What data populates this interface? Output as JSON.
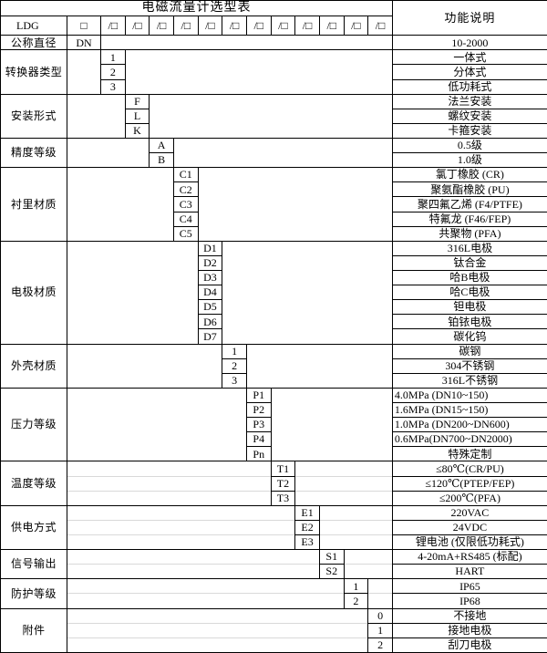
{
  "title": "电磁流量计选型表",
  "function_column_header": "功能说明",
  "model_row": {
    "prefix": "LDG",
    "first_box": "□",
    "slash_box": "/□",
    "slash_box_count": 12
  },
  "colors": {
    "border": "#000000",
    "faint_grid_line": "#d9d9d9",
    "text": "#000000",
    "background": "#ffffff"
  },
  "blocks": [
    {
      "label": "公称直径",
      "code_column": 1,
      "faint_lines": false,
      "rows": [
        {
          "code": "DN",
          "function": "10-2000"
        }
      ]
    },
    {
      "label": "转换器类型",
      "code_column": 2,
      "faint_lines": false,
      "rows": [
        {
          "code": "1",
          "function": "一体式"
        },
        {
          "code": "2",
          "function": "分体式"
        },
        {
          "code": "3",
          "function": "低功耗式"
        }
      ]
    },
    {
      "label": "安装形式",
      "code_column": 3,
      "faint_lines": false,
      "rows": [
        {
          "code": "F",
          "function": "法兰安装"
        },
        {
          "code": "L",
          "function": "螺纹安装"
        },
        {
          "code": "K",
          "function": "卡箍安装"
        }
      ]
    },
    {
      "label": "精度等级",
      "code_column": 4,
      "faint_lines": false,
      "rows": [
        {
          "code": "A",
          "function": "0.5级"
        },
        {
          "code": "B",
          "function": "1.0级"
        }
      ]
    },
    {
      "label": "衬里材质",
      "code_column": 5,
      "faint_lines": false,
      "rows": [
        {
          "code": "C1",
          "function": "氯丁橡胶 (CR)"
        },
        {
          "code": "C2",
          "function": "聚氨酯橡胶 (PU)"
        },
        {
          "code": "C3",
          "function": "聚四氟乙烯 (F4/PTFE)"
        },
        {
          "code": "C4",
          "function": "特氟龙 (F46/FEP)"
        },
        {
          "code": "C5",
          "function": "共聚物 (PFA)"
        }
      ]
    },
    {
      "label": "电极材质",
      "code_column": 6,
      "faint_lines": false,
      "rows": [
        {
          "code": "D1",
          "function": "316L电极"
        },
        {
          "code": "D2",
          "function": "钛合金"
        },
        {
          "code": "D3",
          "function": "哈B电极"
        },
        {
          "code": "D4",
          "function": "哈C电极"
        },
        {
          "code": "D5",
          "function": "钽电极"
        },
        {
          "code": "D6",
          "function": "铂铱电极"
        },
        {
          "code": "D7",
          "function": "碳化钨"
        }
      ]
    },
    {
      "label": "外壳材质",
      "code_column": 7,
      "faint_lines": false,
      "rows": [
        {
          "code": "1",
          "function": "碳钢"
        },
        {
          "code": "2",
          "function": "304不锈钢"
        },
        {
          "code": "3",
          "function": "316L不锈钢"
        }
      ]
    },
    {
      "label": "压力等级",
      "code_column": 8,
      "faint_lines": false,
      "rows": [
        {
          "code": "P1",
          "function": "4.0MPa (DN10~150)",
          "align": "left"
        },
        {
          "code": "P2",
          "function": "1.6MPa (DN15~150)",
          "align": "left"
        },
        {
          "code": "P3",
          "function": "1.0MPa (DN200~DN600)",
          "align": "left"
        },
        {
          "code": "P4",
          "function": "0.6MPa(DN700~DN2000)",
          "align": "left"
        },
        {
          "code": "Pn",
          "function": "特殊定制"
        }
      ]
    },
    {
      "label": "温度等级",
      "code_column": 9,
      "faint_lines": true,
      "rows": [
        {
          "code": "T1",
          "function": "≤80℃(CR/PU)"
        },
        {
          "code": "T2",
          "function": "≤120℃(PTEP/FEP)"
        },
        {
          "code": "T3",
          "function": "≤200℃(PFA)"
        }
      ]
    },
    {
      "label": "供电方式",
      "code_column": 10,
      "faint_lines": true,
      "rows": [
        {
          "code": "E1",
          "function": "220VAC"
        },
        {
          "code": "E2",
          "function": "24VDC"
        },
        {
          "code": "E3",
          "function": "锂电池 (仅限低功耗式)"
        }
      ]
    },
    {
      "label": "信号输出",
      "code_column": 11,
      "faint_lines": true,
      "rows": [
        {
          "code": "S1",
          "function": "4-20mA+RS485 (标配)"
        },
        {
          "code": "S2",
          "function": "HART"
        }
      ]
    },
    {
      "label": "防护等级",
      "code_column": 12,
      "faint_lines": true,
      "rows": [
        {
          "code": "1",
          "function": "IP65"
        },
        {
          "code": "2",
          "function": "IP68"
        }
      ]
    },
    {
      "label": "附件",
      "code_column": 13,
      "faint_lines": true,
      "rows": [
        {
          "code": "0",
          "function": "不接地"
        },
        {
          "code": "1",
          "function": "接地电极"
        },
        {
          "code": "2",
          "function": "刮刀电极"
        }
      ]
    }
  ]
}
